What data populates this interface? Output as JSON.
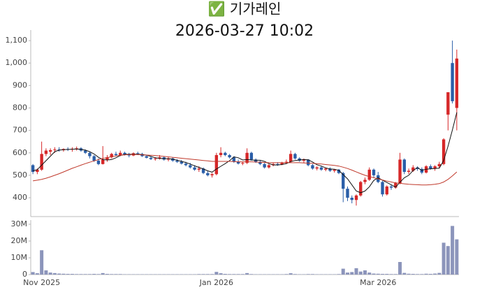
{
  "chart_data": {
    "type": "candlestick",
    "title": "✅ 기가레인",
    "subtitle": "2026-03-27 10:02",
    "categories": [
      null,
      null,
      "Nov 2025",
      null,
      null,
      null,
      null,
      null,
      null,
      null,
      null,
      null,
      null,
      null,
      null,
      null,
      null,
      null,
      null,
      null,
      null,
      null,
      null,
      null,
      null,
      null,
      null,
      null,
      null,
      null,
      null,
      null,
      null,
      null,
      null,
      null,
      null,
      null,
      null,
      null,
      null,
      null,
      "Jan 2026",
      null,
      null,
      null,
      null,
      null,
      null,
      null,
      null,
      null,
      null,
      null,
      null,
      null,
      null,
      null,
      null,
      null,
      null,
      null,
      null,
      null,
      null,
      null,
      null,
      null,
      null,
      null,
      null,
      null,
      null,
      null,
      null,
      null,
      null,
      null,
      null,
      "Mar 2026",
      null,
      null,
      null,
      null,
      null,
      null,
      null,
      null,
      null,
      null,
      null,
      null,
      null,
      null,
      null,
      null,
      null,
      null
    ],
    "open": [
      545,
      515,
      525,
      595,
      605,
      612,
      615,
      612,
      617,
      615,
      618,
      620,
      610,
      600,
      585,
      565,
      550,
      570,
      580,
      595,
      590,
      600,
      592,
      588,
      598,
      595,
      585,
      578,
      572,
      575,
      580,
      570,
      575,
      565,
      560,
      552,
      545,
      535,
      525,
      530,
      510,
      500,
      505,
      590,
      600,
      590,
      580,
      560,
      552,
      555,
      600,
      570,
      560,
      550,
      535,
      545,
      550,
      548,
      555,
      560,
      595,
      575,
      565,
      570,
      545,
      530,
      535,
      525,
      530,
      520,
      525,
      510,
      440,
      400,
      390,
      410,
      470,
      480,
      525,
      500,
      470,
      415,
      450,
      445,
      465,
      570,
      515,
      520,
      535,
      528,
      512,
      540,
      530,
      540,
      550,
      770,
      1000,
      800
    ],
    "high": [
      550,
      530,
      650,
      620,
      620,
      625,
      625,
      620,
      625,
      625,
      628,
      625,
      615,
      605,
      590,
      575,
      630,
      590,
      600,
      605,
      610,
      605,
      600,
      602,
      605,
      600,
      592,
      585,
      580,
      590,
      585,
      580,
      580,
      572,
      568,
      560,
      555,
      545,
      540,
      535,
      520,
      510,
      600,
      625,
      605,
      595,
      585,
      570,
      560,
      620,
      605,
      575,
      565,
      555,
      550,
      555,
      558,
      560,
      570,
      610,
      600,
      580,
      575,
      572,
      550,
      540,
      540,
      535,
      535,
      528,
      528,
      515,
      450,
      410,
      415,
      475,
      490,
      535,
      530,
      515,
      475,
      455,
      458,
      470,
      600,
      575,
      530,
      545,
      540,
      535,
      545,
      548,
      545,
      560,
      665,
      870,
      1100,
      1060
    ],
    "low": [
      505,
      505,
      520,
      585,
      590,
      600,
      605,
      605,
      608,
      605,
      610,
      605,
      595,
      575,
      560,
      545,
      548,
      560,
      575,
      585,
      585,
      588,
      580,
      585,
      590,
      582,
      575,
      568,
      565,
      570,
      565,
      562,
      560,
      555,
      548,
      540,
      530,
      520,
      515,
      505,
      495,
      490,
      500,
      580,
      585,
      575,
      555,
      548,
      545,
      550,
      565,
      555,
      545,
      530,
      530,
      540,
      542,
      545,
      550,
      555,
      570,
      560,
      555,
      540,
      525,
      522,
      520,
      518,
      515,
      512,
      505,
      380,
      385,
      375,
      365,
      405,
      460,
      475,
      490,
      465,
      405,
      410,
      435,
      440,
      460,
      505,
      505,
      515,
      520,
      505,
      508,
      525,
      520,
      530,
      545,
      700,
      820,
      700
    ],
    "close": [
      515,
      525,
      595,
      610,
      612,
      615,
      612,
      617,
      615,
      618,
      620,
      610,
      600,
      585,
      565,
      550,
      570,
      580,
      595,
      590,
      600,
      592,
      588,
      598,
      595,
      585,
      578,
      572,
      575,
      580,
      570,
      575,
      565,
      560,
      552,
      545,
      535,
      525,
      530,
      510,
      500,
      505,
      590,
      600,
      590,
      580,
      560,
      552,
      555,
      600,
      570,
      560,
      550,
      535,
      545,
      550,
      548,
      555,
      560,
      595,
      575,
      565,
      570,
      545,
      530,
      535,
      525,
      530,
      520,
      525,
      510,
      440,
      400,
      390,
      410,
      470,
      480,
      525,
      500,
      470,
      415,
      450,
      445,
      465,
      570,
      515,
      520,
      535,
      528,
      512,
      540,
      530,
      540,
      550,
      660,
      870,
      830,
      1020
    ],
    "up_color": "#d62728",
    "down_color": "#2a5ea8",
    "lines": [
      {
        "color": "#111111",
        "values": [
          520,
          525,
          545,
          565,
          585,
          605,
          612,
          614,
          615,
          616,
          617,
          615,
          612,
          605,
          595,
          580,
          570,
          568,
          570,
          578,
          588,
          593,
          594,
          594,
          594,
          592,
          590,
          584,
          578,
          575,
          574,
          574,
          572,
          567,
          562,
          557,
          550,
          542,
          535,
          528,
          520,
          514,
          528,
          540,
          552,
          565,
          582,
          578,
          568,
          570,
          568,
          567,
          567,
          562,
          552,
          546,
          546,
          548,
          552,
          561,
          566,
          568,
          570,
          569,
          559,
          547,
          541,
          533,
          528,
          527,
          522,
          503,
          484,
          457,
          430,
          422,
          430,
          449,
          477,
          489,
          478,
          468,
          458,
          447,
          469,
          489,
          500,
          521,
          534,
          522,
          527,
          529,
          530,
          532,
          566,
          630,
          702,
          780
        ]
      },
      {
        "color": "#c0392b",
        "values": [
          475,
          478,
          482,
          487,
          493,
          500,
          507,
          515,
          523,
          531,
          538,
          545,
          552,
          558,
          564,
          570,
          575,
          579,
          583,
          586,
          589,
          591,
          592,
          592,
          592,
          591,
          590,
          589,
          588,
          586,
          584,
          582,
          580,
          578,
          576,
          574,
          572,
          570,
          568,
          566,
          564,
          562,
          562,
          562,
          562,
          562,
          561,
          560,
          560,
          560,
          560,
          559,
          558,
          557,
          556,
          556,
          556,
          556,
          556,
          556,
          556,
          556,
          555,
          554,
          553,
          552,
          550,
          548,
          546,
          544,
          541,
          536,
          530,
          523,
          515,
          507,
          500,
          494,
          489,
          484,
          479,
          474,
          470,
          466,
          464,
          462,
          460,
          459,
          458,
          457,
          457,
          458,
          460,
          463,
          470,
          482,
          497,
          515
        ]
      }
    ],
    "ylim": [
      316,
      1147
    ],
    "yticks": [
      400,
      500,
      600,
      700,
      800,
      900,
      {
        "value": 1000,
        "label": "1,000"
      },
      {
        "value": 1100,
        "label": "1,100"
      }
    ],
    "volume": {
      "color": "#8c95bb",
      "values": [
        1500000,
        800000,
        14500000,
        2500000,
        1200000,
        900000,
        600000,
        500000,
        400000,
        400000,
        300000,
        300000,
        300000,
        300000,
        400000,
        300000,
        900000,
        400000,
        300000,
        300000,
        300000,
        200000,
        200000,
        200000,
        200000,
        200000,
        200000,
        200000,
        200000,
        200000,
        200000,
        200000,
        200000,
        200000,
        200000,
        200000,
        200000,
        200000,
        300000,
        300000,
        300000,
        300000,
        1600000,
        800000,
        400000,
        300000,
        300000,
        300000,
        300000,
        900000,
        300000,
        200000,
        200000,
        200000,
        200000,
        200000,
        200000,
        200000,
        300000,
        800000,
        300000,
        200000,
        200000,
        300000,
        300000,
        200000,
        200000,
        200000,
        200000,
        200000,
        300000,
        3500000,
        1200000,
        1500000,
        3800000,
        1800000,
        2500000,
        1200000,
        600000,
        500000,
        400000,
        400000,
        300000,
        300000,
        7500000,
        1000000,
        500000,
        400000,
        300000,
        300000,
        500000,
        400000,
        600000,
        1000000,
        19000000,
        17000000,
        29000000,
        21000000
      ],
      "ylim": [
        0,
        32500000
      ],
      "yticks": [
        0,
        {
          "value": 10000000,
          "label": "10M"
        },
        {
          "value": 20000000,
          "label": "20M"
        },
        {
          "value": 30000000,
          "label": "30M"
        }
      ]
    }
  }
}
